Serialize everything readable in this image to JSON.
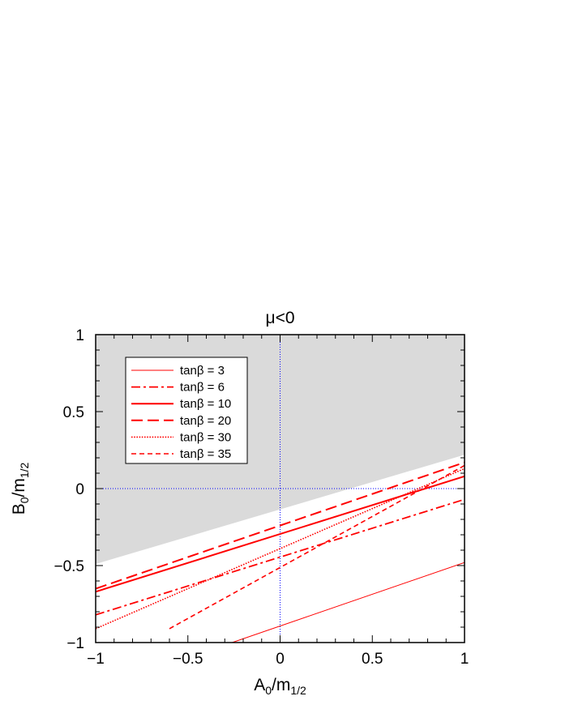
{
  "chart_data": {
    "type": "line",
    "title": "μ<0",
    "xlabel": {
      "main": "A",
      "sub1": "0",
      "mid": "/m",
      "sub2": "1/2"
    },
    "ylabel": {
      "main": "B",
      "sub1": "0",
      "mid": "/m",
      "sub2": "1/2"
    },
    "xlim": [
      -1,
      1
    ],
    "ylim": [
      -1,
      1
    ],
    "xticks": [
      -1,
      -0.5,
      0,
      0.5,
      1
    ],
    "yticks": [
      -1,
      -0.5,
      0,
      0.5,
      1
    ],
    "xtick_labels": [
      "−1",
      "−0.5",
      "0",
      "0.5",
      "1"
    ],
    "ytick_labels": [
      "−1",
      "−0.5",
      "0",
      "0.5",
      "1"
    ],
    "grid": false,
    "reference_lines": {
      "x": 0,
      "y": 0,
      "color": "#0000ff",
      "style": "dotted"
    },
    "excluded_region": {
      "color": "#dadada",
      "lower_boundary": {
        "x": [
          -1,
          1
        ],
        "y": [
          -0.49,
          0.22
        ]
      }
    },
    "legend_position": "top-left",
    "series_color": "#ff0000",
    "series": [
      {
        "name": "tanβ = 3",
        "style": "thin-solid",
        "x": [
          -0.26,
          1
        ],
        "y": [
          -1.0,
          -0.48
        ]
      },
      {
        "name": "tanβ = 6",
        "style": "dash-dot",
        "x": [
          -1,
          1
        ],
        "y": [
          -0.82,
          -0.07
        ]
      },
      {
        "name": "tanβ = 10",
        "style": "solid",
        "x": [
          -1,
          1
        ],
        "y": [
          -0.67,
          0.08
        ]
      },
      {
        "name": "tanβ = 20",
        "style": "long-dash",
        "x": [
          -1,
          1
        ],
        "y": [
          -0.65,
          0.17
        ]
      },
      {
        "name": "tanβ = 30",
        "style": "dotted",
        "x": [
          -1,
          1
        ],
        "y": [
          -0.91,
          0.13
        ]
      },
      {
        "name": "tanβ = 35",
        "style": "dashed",
        "x": [
          -0.6,
          1
        ],
        "y": [
          -0.91,
          0.15
        ]
      }
    ]
  }
}
